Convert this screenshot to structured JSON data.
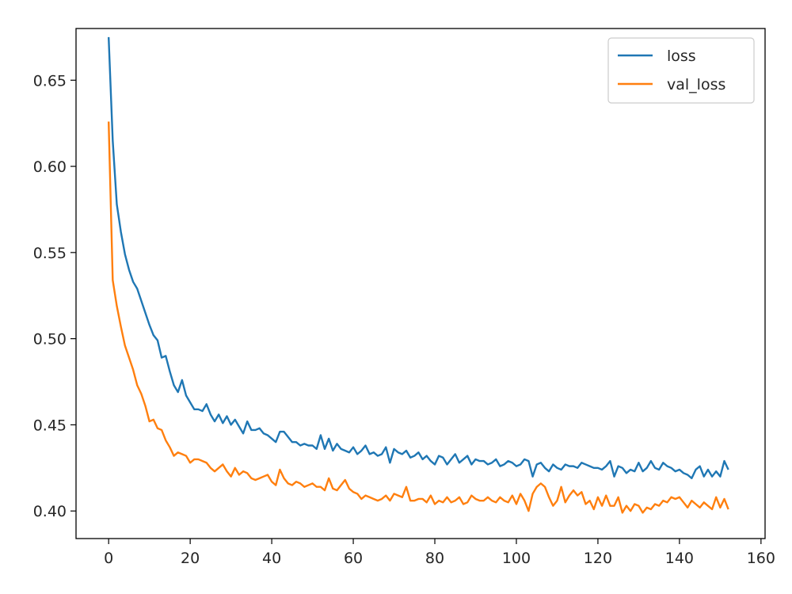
{
  "chart_data": {
    "type": "line",
    "title": "",
    "xlabel": "",
    "ylabel": "",
    "xlim": [
      -8,
      161
    ],
    "ylim": [
      0.384,
      0.68
    ],
    "xticks": [
      0,
      20,
      40,
      60,
      80,
      100,
      120,
      140,
      160
    ],
    "yticks": [
      0.4,
      0.45,
      0.5,
      0.55,
      0.6,
      0.65
    ],
    "xtick_labels": [
      "0",
      "20",
      "40",
      "60",
      "80",
      "100",
      "120",
      "140",
      "160"
    ],
    "ytick_labels": [
      "0.40",
      "0.45",
      "0.50",
      "0.55",
      "0.60",
      "0.65"
    ],
    "grid": false,
    "legend_position": "top-right",
    "series": [
      {
        "name": "loss",
        "color": "#1f77b4",
        "values": [
          0.675,
          0.615,
          0.578,
          0.562,
          0.549,
          0.54,
          0.533,
          0.529,
          0.522,
          0.515,
          0.508,
          0.502,
          0.499,
          0.489,
          0.49,
          0.481,
          0.473,
          0.469,
          0.476,
          0.467,
          0.463,
          0.459,
          0.459,
          0.458,
          0.462,
          0.456,
          0.452,
          0.456,
          0.451,
          0.455,
          0.45,
          0.453,
          0.449,
          0.445,
          0.452,
          0.447,
          0.447,
          0.448,
          0.445,
          0.444,
          0.442,
          0.44,
          0.446,
          0.446,
          0.443,
          0.44,
          0.44,
          0.438,
          0.439,
          0.438,
          0.438,
          0.436,
          0.444,
          0.436,
          0.442,
          0.435,
          0.439,
          0.436,
          0.435,
          0.434,
          0.437,
          0.433,
          0.435,
          0.438,
          0.433,
          0.434,
          0.432,
          0.433,
          0.437,
          0.428,
          0.436,
          0.434,
          0.433,
          0.435,
          0.431,
          0.432,
          0.434,
          0.43,
          0.432,
          0.429,
          0.427,
          0.432,
          0.431,
          0.427,
          0.43,
          0.433,
          0.428,
          0.43,
          0.432,
          0.427,
          0.43,
          0.429,
          0.429,
          0.427,
          0.428,
          0.43,
          0.426,
          0.427,
          0.429,
          0.428,
          0.426,
          0.427,
          0.43,
          0.429,
          0.42,
          0.427,
          0.428,
          0.425,
          0.423,
          0.427,
          0.425,
          0.424,
          0.427,
          0.426,
          0.426,
          0.425,
          0.428,
          0.427,
          0.426,
          0.425,
          0.425,
          0.424,
          0.426,
          0.429,
          0.42,
          0.426,
          0.425,
          0.422,
          0.424,
          0.423,
          0.428,
          0.423,
          0.425,
          0.429,
          0.425,
          0.424,
          0.428,
          0.426,
          0.425,
          0.423,
          0.424,
          0.422,
          0.421,
          0.419,
          0.424,
          0.426,
          0.42,
          0.424,
          0.42,
          0.423,
          0.42,
          0.429,
          0.424
        ]
      },
      {
        "name": "val_loss",
        "color": "#ff7f0e",
        "values": [
          0.626,
          0.534,
          0.519,
          0.507,
          0.496,
          0.489,
          0.482,
          0.473,
          0.468,
          0.461,
          0.452,
          0.453,
          0.448,
          0.447,
          0.441,
          0.437,
          0.432,
          0.434,
          0.433,
          0.432,
          0.428,
          0.43,
          0.43,
          0.429,
          0.428,
          0.425,
          0.423,
          0.425,
          0.427,
          0.423,
          0.42,
          0.425,
          0.421,
          0.423,
          0.422,
          0.419,
          0.418,
          0.419,
          0.42,
          0.421,
          0.417,
          0.415,
          0.424,
          0.419,
          0.416,
          0.415,
          0.417,
          0.416,
          0.414,
          0.415,
          0.416,
          0.414,
          0.414,
          0.412,
          0.419,
          0.413,
          0.412,
          0.415,
          0.418,
          0.413,
          0.411,
          0.41,
          0.407,
          0.409,
          0.408,
          0.407,
          0.406,
          0.407,
          0.409,
          0.406,
          0.41,
          0.409,
          0.408,
          0.414,
          0.406,
          0.406,
          0.407,
          0.407,
          0.405,
          0.409,
          0.404,
          0.406,
          0.405,
          0.408,
          0.405,
          0.406,
          0.408,
          0.404,
          0.405,
          0.409,
          0.407,
          0.406,
          0.406,
          0.408,
          0.406,
          0.405,
          0.408,
          0.406,
          0.405,
          0.409,
          0.404,
          0.41,
          0.406,
          0.4,
          0.41,
          0.414,
          0.416,
          0.414,
          0.408,
          0.403,
          0.406,
          0.414,
          0.405,
          0.409,
          0.412,
          0.409,
          0.411,
          0.404,
          0.406,
          0.401,
          0.408,
          0.403,
          0.409,
          0.403,
          0.403,
          0.408,
          0.399,
          0.403,
          0.4,
          0.404,
          0.403,
          0.399,
          0.402,
          0.401,
          0.404,
          0.403,
          0.406,
          0.405,
          0.408,
          0.407,
          0.408,
          0.405,
          0.402,
          0.406,
          0.404,
          0.402,
          0.405,
          0.403,
          0.401,
          0.408,
          0.402,
          0.407,
          0.401
        ]
      }
    ]
  }
}
